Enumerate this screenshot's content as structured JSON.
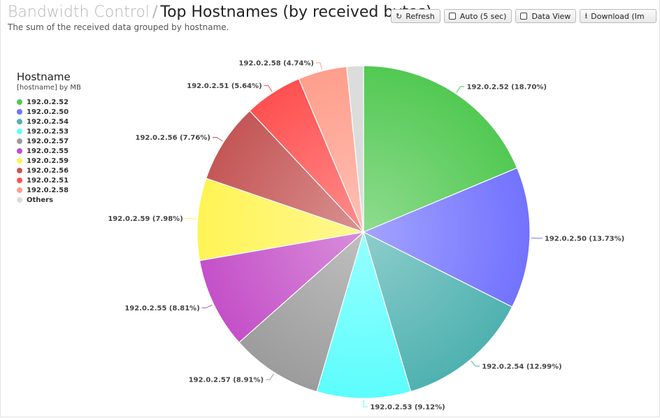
{
  "header": {
    "breadcrumb": "Bandwidth Control",
    "separator": "/",
    "title": "Top Hostnames (by received bytes)",
    "subtitle": "The sum of the received data grouped by hostname."
  },
  "toolbar": {
    "refresh_label": "Refresh",
    "auto_label": "Auto (5 sec)",
    "data_view_label": "Data View",
    "download_label": "Download (Im"
  },
  "legend": {
    "title": "Hostname",
    "subtitle": "[hostname] by MB"
  },
  "chart_data": {
    "type": "pie",
    "title": "Top Hostnames (by received bytes)",
    "slices": [
      {
        "name": "192.0.2.52",
        "value": 18.7,
        "label": "192.0.2.52 (18.70%)",
        "color": "#52c952"
      },
      {
        "name": "192.0.2.50",
        "value": 13.73,
        "label": "192.0.2.50 (13.73%)",
        "color": "#7272ff"
      },
      {
        "name": "192.0.2.54",
        "value": 12.99,
        "label": "192.0.2.54 (12.99%)",
        "color": "#4fb2b0"
      },
      {
        "name": "192.0.2.53",
        "value": 9.12,
        "label": "192.0.2.53 (9.12%)",
        "color": "#5dfdfd"
      },
      {
        "name": "192.0.2.57",
        "value": 8.91,
        "label": "192.0.2.57 (8.91%)",
        "color": "#9c9c9c"
      },
      {
        "name": "192.0.2.55",
        "value": 8.81,
        "label": "192.0.2.55 (8.81%)",
        "color": "#c450c8"
      },
      {
        "name": "192.0.2.59",
        "value": 7.98,
        "label": "192.0.2.59 (7.98%)",
        "color": "#fff455"
      },
      {
        "name": "192.0.2.56",
        "value": 7.76,
        "label": "192.0.2.56 (7.76%)",
        "color": "#c45656"
      },
      {
        "name": "192.0.2.51",
        "value": 5.64,
        "label": "192.0.2.51 (5.64%)",
        "color": "#ff5050"
      },
      {
        "name": "192.0.2.58",
        "value": 4.74,
        "label": "192.0.2.58 (4.74%)",
        "color": "#ff9e8c"
      },
      {
        "name": "Others",
        "value": 1.62,
        "label": "",
        "color": "#dcdcdc"
      }
    ],
    "legend_position": "left"
  }
}
